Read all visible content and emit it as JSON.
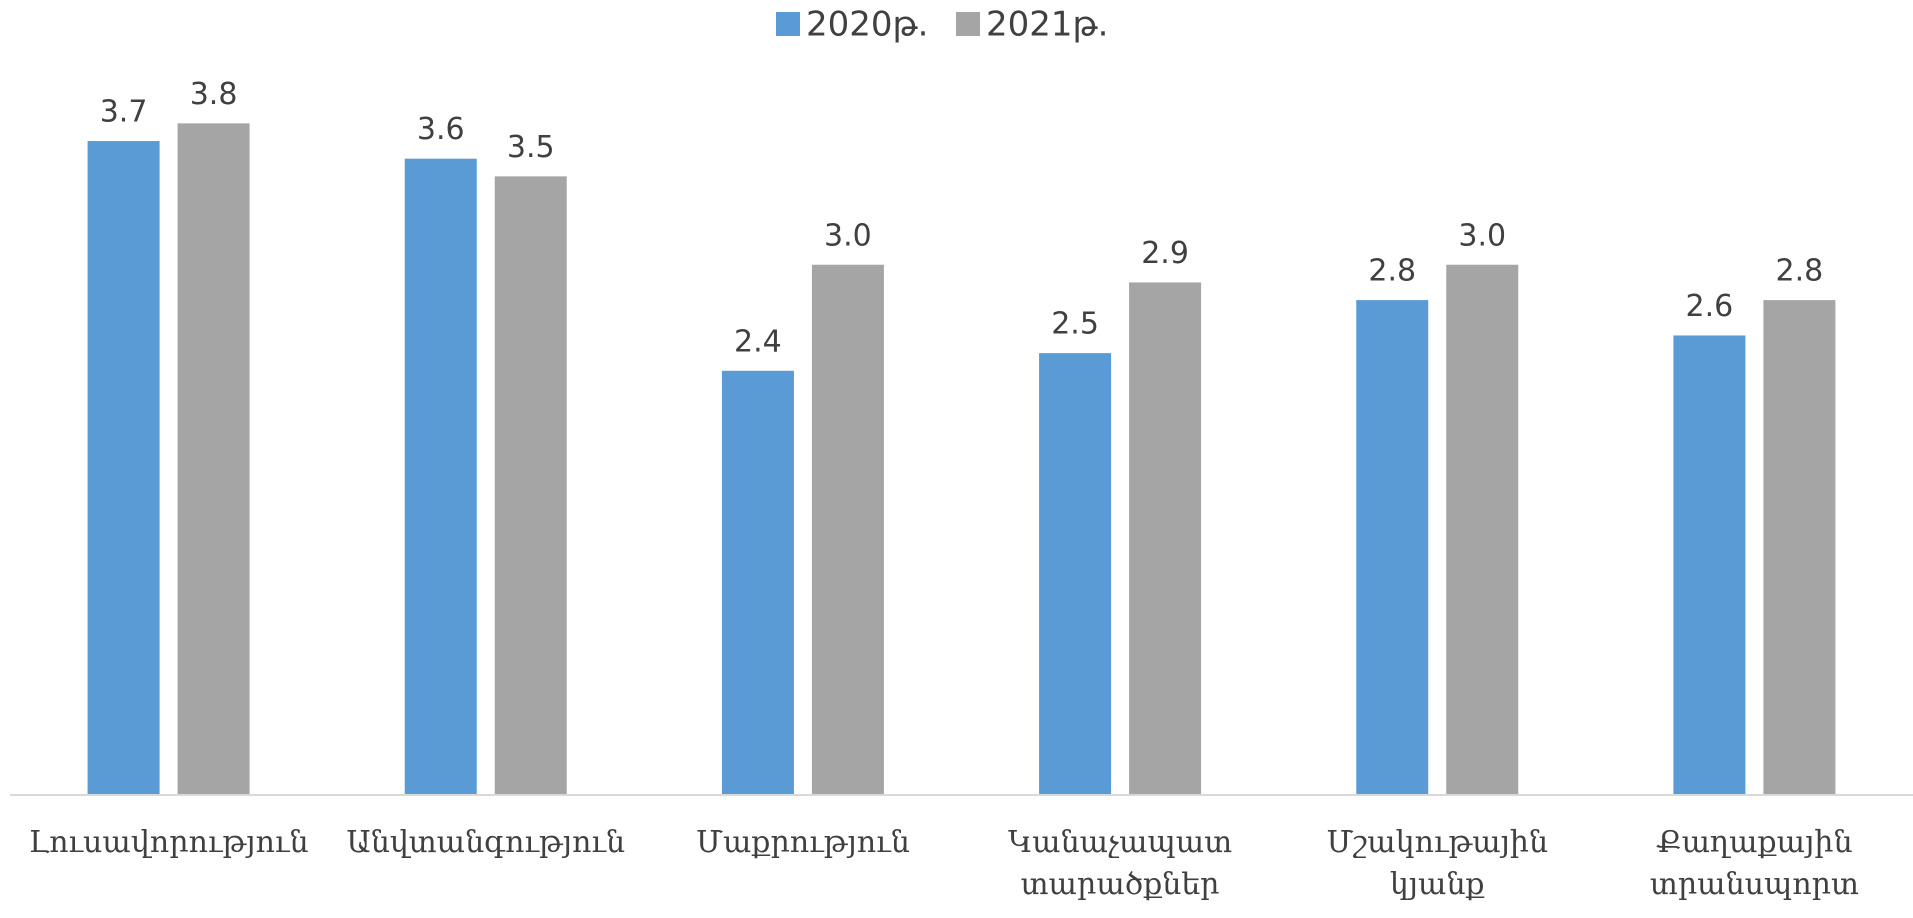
{
  "chart_data": {
    "type": "bar",
    "categories": [
      "Լուսավորություն",
      "Անվտանգություն",
      "Մաքրություն",
      "Կանաչապատ տարածքներ",
      "Մշակութային կյանք",
      "Քաղաքային տրանսպորտ"
    ],
    "series": [
      {
        "name": "2020թ.",
        "color": "#5b9bd5",
        "values": [
          3.7,
          3.6,
          2.4,
          2.5,
          2.8,
          2.6
        ],
        "value_labels": [
          "3.7",
          "3.6",
          "2.4",
          "2.5",
          "2.8",
          "2.6"
        ]
      },
      {
        "name": "2021թ.",
        "color": "#a5a5a5",
        "values": [
          3.8,
          3.5,
          3.0,
          2.9,
          3.0,
          2.8
        ],
        "value_labels": [
          "3.8",
          "3.5",
          "3.0",
          "2.9",
          "3.0",
          "2.8"
        ]
      }
    ],
    "ylim": [
      0,
      4
    ],
    "legend": "top"
  }
}
